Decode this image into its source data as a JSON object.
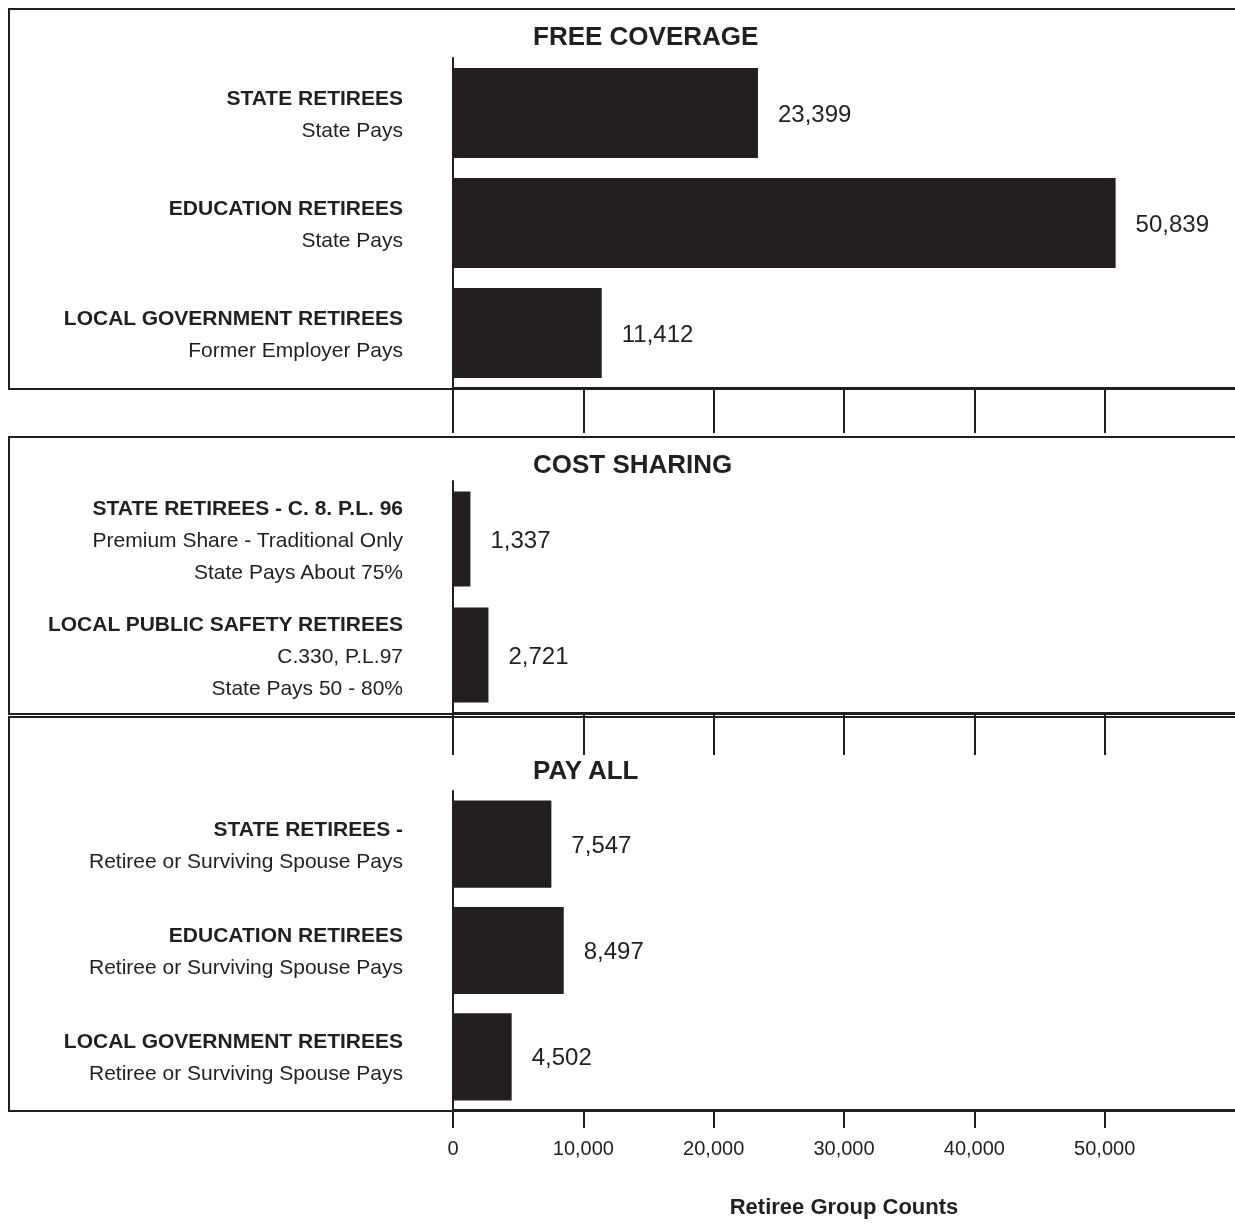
{
  "chart_data": [
    {
      "type": "bar",
      "orientation": "horizontal",
      "title": "FREE COVERAGE",
      "categories": [
        "STATE RETIREES\nState Pays",
        "EDUCATION RETIREES\nState Pays",
        "LOCAL GOVERNMENT RETIREES\nFormer Employer Pays"
      ],
      "values": [
        23399,
        50839,
        11412
      ],
      "value_labels": [
        "23,399",
        "50,839",
        "11,412"
      ],
      "color": "#231f20",
      "xlim": [
        0,
        60000
      ],
      "xticks": [
        {
          "value": 0,
          "label": null
        },
        {
          "value": 10000,
          "label": null
        },
        {
          "value": 20000,
          "label": null
        },
        {
          "value": 30000,
          "label": null
        },
        {
          "value": 40000,
          "label": null
        },
        {
          "value": 50000,
          "label": null
        }
      ],
      "tick_labels": "y",
      "grid": false
    },
    {
      "type": "bar",
      "orientation": "horizontal",
      "title": "COST SHARING",
      "categories": [
        "STATE RETIREES - C. 8. P.L. 96\nPremium Share - Traditional Only\nState Pays About 75%",
        "LOCAL PUBLIC SAFETY RETIREES\nC.330, P.L.97\nState Pays 50 - 80%"
      ],
      "values": [
        1337,
        2721
      ],
      "value_labels": [
        "1,337",
        "2,721"
      ],
      "color": "#231f20",
      "xlim": [
        0,
        60000
      ],
      "xticks": [
        {
          "value": 0,
          "label": null
        },
        {
          "value": 10000,
          "label": null
        },
        {
          "value": 20000,
          "label": null
        },
        {
          "value": 30000,
          "label": null
        },
        {
          "value": 40000,
          "label": null
        },
        {
          "value": 50000,
          "label": null
        }
      ],
      "tick_labels": "y",
      "grid": false
    },
    {
      "type": "bar",
      "orientation": "horizontal",
      "title": "PAY ALL",
      "xlabel": "Retiree Group Counts",
      "categories": [
        "STATE RETIREES -\nRetiree or Surviving Spouse Pays",
        "EDUCATION RETIREES\nRetiree or Surviving Spouse Pays",
        "LOCAL GOVERNMENT RETIREES\nRetiree or Surviving Spouse Pays"
      ],
      "values": [
        7547,
        8497,
        4502
      ],
      "value_labels": [
        "7,547",
        "8,497",
        "4,502"
      ],
      "color": "#231f20",
      "xlim": [
        0,
        60000
      ],
      "xticks": [
        {
          "value": 0,
          "label": "0"
        },
        {
          "value": 10000,
          "label": "10,000"
        },
        {
          "value": 20000,
          "label": "20,000"
        },
        {
          "value": 30000,
          "label": "30,000"
        },
        {
          "value": 40000,
          "label": "40,000"
        },
        {
          "value": 50000,
          "label": "50,000"
        }
      ],
      "grid": false
    }
  ]
}
